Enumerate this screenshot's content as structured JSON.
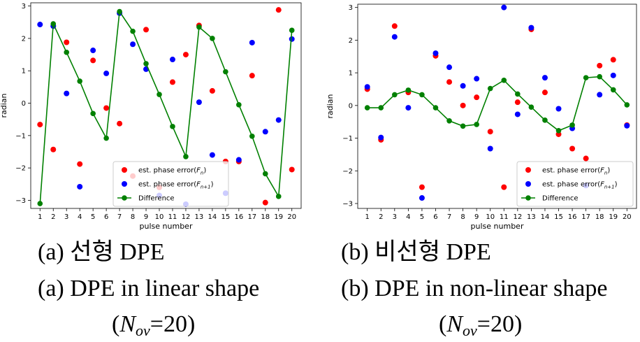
{
  "chart_data": [
    {
      "type": "scatter+line",
      "panel": "a",
      "xlabel": "pulse number",
      "ylabel": "radian",
      "xlim": [
        0.3,
        20.7
      ],
      "ylim": [
        -3.25,
        3.1
      ],
      "xticks": [
        1,
        2,
        3,
        4,
        5,
        6,
        7,
        8,
        9,
        10,
        11,
        12,
        13,
        14,
        15,
        16,
        17,
        18,
        19,
        20
      ],
      "yticks": [
        -3,
        -2,
        -1,
        0,
        1,
        2,
        3
      ],
      "legend_position": "lower-right",
      "series": [
        {
          "name": "est. phase error(F_n)",
          "legend_main": "est. phase error(",
          "legend_sym": "F",
          "legend_sub": "n",
          "legend_close": ")",
          "kind": "scatter",
          "color": "#ff0000",
          "x": [
            1,
            2,
            3,
            4,
            5,
            6,
            7,
            8,
            9,
            10,
            11,
            12,
            13,
            14,
            15,
            16,
            17,
            18,
            19,
            20
          ],
          "y": [
            -0.66,
            -1.43,
            1.88,
            -1.88,
            1.32,
            -0.15,
            -0.63,
            -2.25,
            2.27,
            -2.6,
            0.65,
            1.5,
            2.4,
            0.38,
            -1.8,
            -1.8,
            0.85,
            -3.07,
            2.88,
            -2.05
          ]
        },
        {
          "name": "est. phase error(F_n+1)",
          "legend_main": "est. phase error(",
          "legend_sym": "F",
          "legend_sub": "n+1",
          "legend_close": ")",
          "kind": "scatter",
          "color": "#0000ff",
          "x": [
            1,
            2,
            3,
            4,
            5,
            6,
            7,
            8,
            9,
            10,
            11,
            12,
            13,
            14,
            15,
            16,
            17,
            18,
            19,
            20
          ],
          "y": [
            2.43,
            2.38,
            0.3,
            -2.58,
            1.63,
            0.92,
            2.78,
            1.82,
            1.05,
            -2.85,
            1.35,
            -3.12,
            0.03,
            -1.6,
            -2.78,
            -1.75,
            1.87,
            -0.88,
            -0.52,
            1.98
          ]
        },
        {
          "name": "Difference",
          "legend_main": "Difference",
          "kind": "line",
          "color": "#008000",
          "x": [
            1,
            2,
            3,
            4,
            5,
            6,
            7,
            8,
            9,
            10,
            11,
            12,
            13,
            14,
            15,
            16,
            17,
            18,
            19,
            20
          ],
          "y": [
            -3.1,
            2.45,
            1.57,
            0.68,
            -0.32,
            -1.08,
            2.83,
            2.22,
            1.22,
            0.27,
            -0.72,
            -1.65,
            2.35,
            2.0,
            0.97,
            -0.05,
            -1.02,
            -2.18,
            -2.88,
            2.25
          ]
        }
      ]
    },
    {
      "type": "scatter+line",
      "panel": "b",
      "xlabel": "pulse number",
      "ylabel": "radian",
      "xlim": [
        0.3,
        20.7
      ],
      "ylim": [
        -3.15,
        3.1
      ],
      "xticks": [
        1,
        2,
        3,
        4,
        5,
        6,
        7,
        8,
        9,
        10,
        11,
        12,
        13,
        14,
        15,
        16,
        17,
        18,
        19,
        20
      ],
      "yticks": [
        -3,
        -2,
        -1,
        0,
        1,
        2,
        3
      ],
      "legend_position": "lower-right",
      "series": [
        {
          "name": "est. phase error(F_n)",
          "legend_main": "est. phase error(",
          "legend_sym": "F",
          "legend_sub": "n",
          "legend_close": ")",
          "kind": "scatter",
          "color": "#ff0000",
          "x": [
            1,
            2,
            3,
            4,
            5,
            6,
            7,
            8,
            9,
            10,
            11,
            12,
            13,
            14,
            15,
            16,
            17,
            18,
            19,
            20
          ],
          "y": [
            0.5,
            -1.05,
            2.43,
            0.4,
            -2.5,
            1.52,
            0.72,
            0.0,
            0.25,
            -0.8,
            -2.5,
            0.1,
            2.33,
            0.4,
            -0.88,
            -1.32,
            -1.62,
            1.22,
            1.4,
            -0.6
          ]
        },
        {
          "name": "est. phase error(F_n+1)",
          "legend_main": "est. phase error(",
          "legend_sym": "F",
          "legend_sub": "n+1",
          "legend_close": ")",
          "kind": "scatter",
          "color": "#0000ff",
          "x": [
            1,
            2,
            3,
            4,
            5,
            6,
            7,
            8,
            9,
            10,
            11,
            12,
            13,
            14,
            15,
            16,
            17,
            18,
            19,
            20
          ],
          "y": [
            0.57,
            -0.98,
            2.1,
            -0.07,
            -2.83,
            1.6,
            1.17,
            0.6,
            0.82,
            -1.32,
            3.0,
            -0.27,
            2.38,
            0.85,
            -0.1,
            -0.7,
            -2.45,
            0.33,
            0.92,
            -0.62
          ]
        },
        {
          "name": "Difference",
          "legend_main": "Difference",
          "kind": "line",
          "color": "#008000",
          "x": [
            1,
            2,
            3,
            4,
            5,
            6,
            7,
            8,
            9,
            10,
            11,
            12,
            13,
            14,
            15,
            16,
            17,
            18,
            19,
            20
          ],
          "y": [
            -0.07,
            -0.07,
            0.33,
            0.47,
            0.33,
            -0.07,
            -0.47,
            -0.63,
            -0.58,
            0.52,
            0.77,
            0.35,
            -0.05,
            -0.45,
            -0.77,
            -0.6,
            0.85,
            0.88,
            0.48,
            0.02
          ]
        }
      ]
    }
  ],
  "captions": {
    "a_korean": "(a)  선형  DPE",
    "a_english": "(a)  DPE  in  linear  shape",
    "a_nov_pre": "(",
    "a_nov_N": "N",
    "a_nov_sub": "ov",
    "a_nov_post": "=20)",
    "b_korean": "(b)  비선형  DPE",
    "b_english": "(b)  DPE  in  non-linear  shape",
    "b_nov_pre": "(",
    "b_nov_N": "N",
    "b_nov_sub": "ov",
    "b_nov_post": "=20)"
  }
}
